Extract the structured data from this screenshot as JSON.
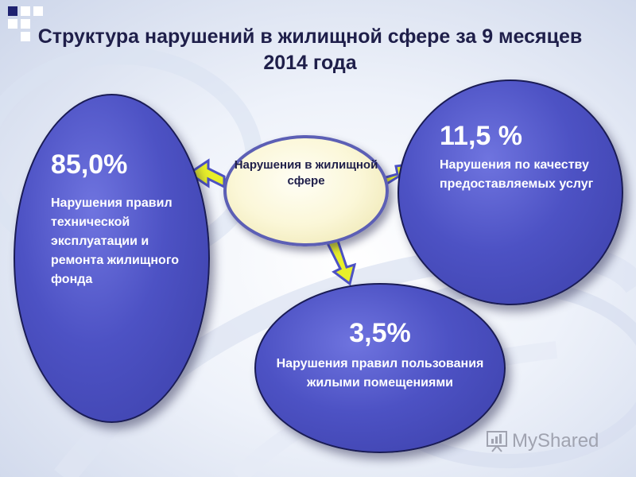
{
  "title": "Структура нарушений в жилищной сфере за 9 месяцев 2014 года",
  "center": {
    "label": "Нарушения в жилищной сфере"
  },
  "segments": [
    {
      "percent": "85,0%",
      "description": "Нарушения правил технической эксплуатации и ремонта жилищного фонда"
    },
    {
      "percent": "11,5 %",
      "description": "Нарушения по качеству предоставляемых услуг"
    },
    {
      "percent": "3,5%",
      "description": "Нарушения правил пользования жилыми помещениями"
    }
  ],
  "watermark": {
    "text": "MyShared",
    "icon": "presentation-board-icon"
  },
  "colors": {
    "oval_fill": "#4d52c4",
    "center_fill": "#fbf7d8",
    "arrow_fill": "#e8ef2a",
    "title_color": "#1f1f4a"
  }
}
